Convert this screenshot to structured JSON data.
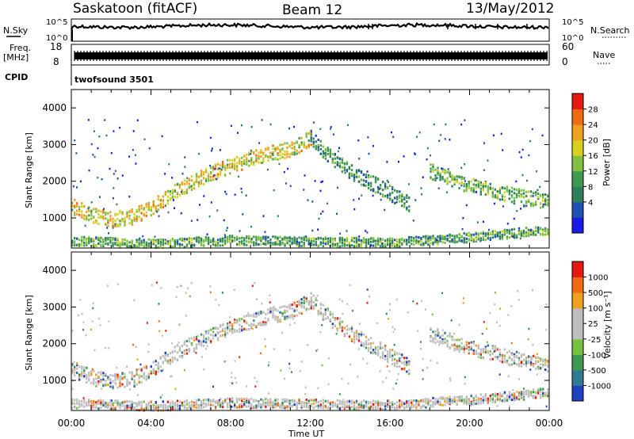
{
  "header": {
    "station": "Saskatoon (fitACF)",
    "beam": "Beam 12",
    "date": "13/May/2012"
  },
  "top_strips": {
    "nsky_label": "N.Sky",
    "nsky_ticks": [
      "10^5",
      "10^0"
    ],
    "nsearch_label": "N.Search",
    "nsearch_ticks": [
      "10^5",
      "10^0"
    ],
    "freq_label": "Freq.",
    "freq_unit": "[MHz]",
    "freq_ticks": [
      "18",
      "8"
    ],
    "nave_label": "Nave",
    "nave_ticks": [
      "60",
      "0"
    ],
    "cpid_label": "CPID",
    "cpid_value": "twofsound 3501"
  },
  "chart_data": [
    {
      "type": "heatmap",
      "panel": "power",
      "ylabel": "Slant Range [km]",
      "ylim": [
        180,
        4500
      ],
      "yticks": [
        "4000",
        "3000",
        "2000",
        "1000"
      ],
      "xlabel": "Time UT",
      "xlim": [
        "00:00",
        "24:00"
      ],
      "xticks": [
        "00:00",
        "04:00",
        "08:00",
        "12:00",
        "16:00",
        "20:00",
        "00:00"
      ],
      "colorbar": {
        "label": "Power [dB]",
        "ticks": [
          "28",
          "24",
          "20",
          "16",
          "12",
          "8",
          "4"
        ],
        "colors": [
          "#1a1ae6",
          "#1f4fb0",
          "#2d7f5e",
          "#3f9a4f",
          "#7fc040",
          "#d8d020",
          "#f0a020",
          "#f06a10",
          "#e41a10"
        ]
      },
      "echo_bands": [
        {
          "time_h": [
            0,
            1,
            2,
            3,
            4,
            5,
            6,
            7,
            8,
            9,
            10,
            11,
            12
          ],
          "range_km": [
            1350,
            1100,
            1000,
            1050,
            1300,
            1700,
            2000,
            2250,
            2450,
            2650,
            2800,
            2900,
            3200
          ],
          "power_db": 22
        },
        {
          "time_h": [
            12,
            13,
            14,
            15,
            16,
            17
          ],
          "range_km": [
            3200,
            2700,
            2300,
            2000,
            1700,
            1400
          ],
          "power_db": 12
        },
        {
          "time_h": [
            18,
            19,
            20,
            21,
            22,
            23,
            24
          ],
          "range_km": [
            2300,
            2100,
            1900,
            1800,
            1650,
            1550,
            1450
          ],
          "power_db": 16
        },
        {
          "time_h": [
            0,
            4,
            8,
            12,
            16,
            20,
            24
          ],
          "range_km": [
            400,
            320,
            420,
            380,
            350,
            500,
            700
          ],
          "power_db": 14
        }
      ]
    },
    {
      "type": "heatmap",
      "panel": "velocity",
      "ylabel": "Slant Range [km]",
      "ylim": [
        180,
        4500
      ],
      "yticks": [
        "4000",
        "3000",
        "2000",
        "1000"
      ],
      "xlabel": "Time UT",
      "xlim": [
        "00:00",
        "24:00"
      ],
      "xticks": [
        "00:00",
        "04:00",
        "08:00",
        "12:00",
        "16:00",
        "20:00",
        "00:00"
      ],
      "colorbar": {
        "label": "Velocity [m s⁻¹]",
        "ticks": [
          "1000",
          "500",
          "100",
          "25",
          "-25",
          "-100",
          "-500",
          "-1000"
        ],
        "colors": [
          "#2040c0",
          "#2e7a90",
          "#3f9a50",
          "#78c040",
          "#bebebe",
          "#bebebe",
          "#f0a020",
          "#f06a10",
          "#e41a10"
        ]
      }
    }
  ]
}
